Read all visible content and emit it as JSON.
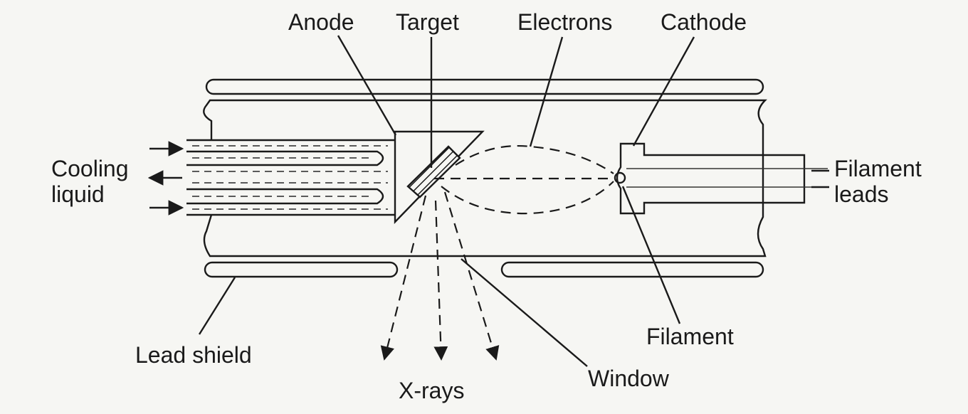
{
  "labels": {
    "anode": "Anode",
    "target": "Target",
    "electrons": "Electrons",
    "cathode": "Cathode",
    "cooling_line1": "Cooling",
    "cooling_line2": "liquid",
    "filament_leads_line1": "Filament",
    "filament_leads_line2": "leads",
    "lead_shield": "Lead shield",
    "filament": "Filament",
    "window": "Window",
    "xrays": "X-rays"
  },
  "colors": {
    "ink": "#1a1a1a",
    "paper": "#f6f6f3"
  }
}
